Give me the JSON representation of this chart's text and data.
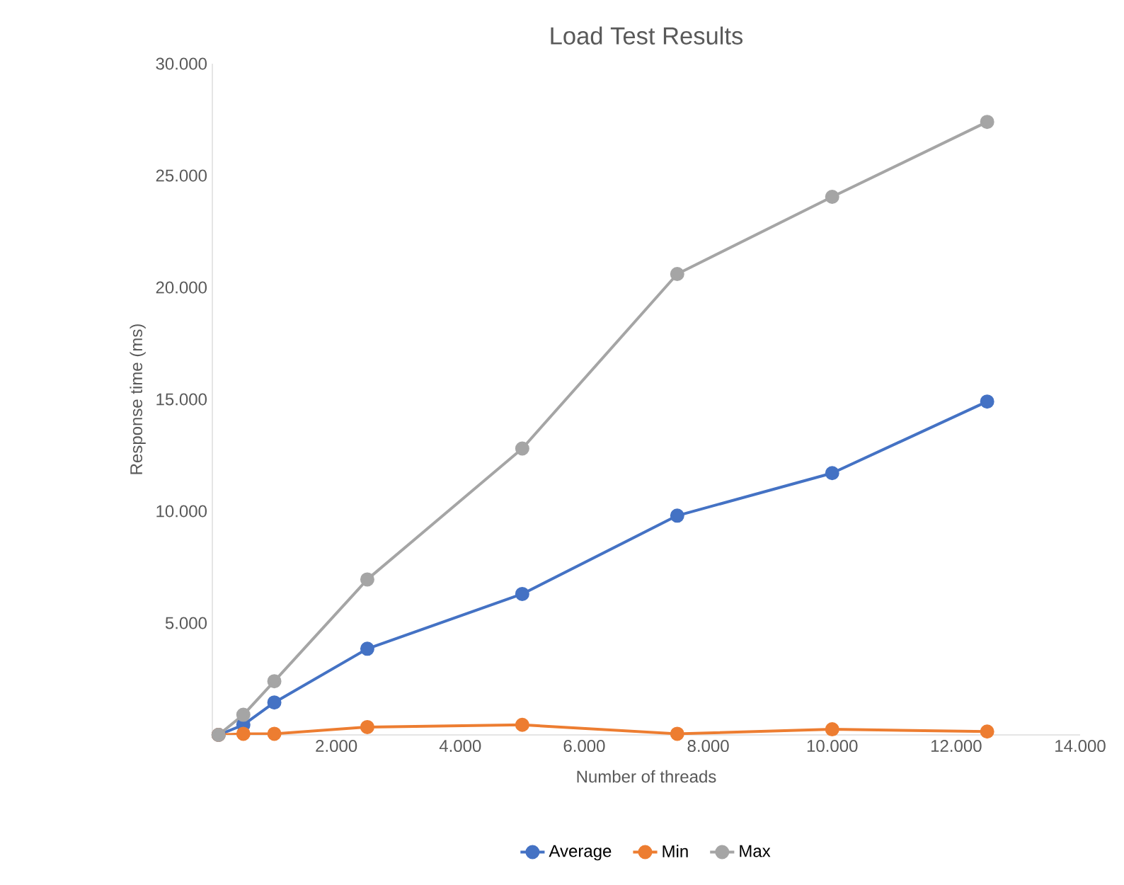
{
  "chart_data": {
    "type": "line",
    "title": "Load Test Results",
    "xlabel": "Number of threads",
    "ylabel": "Response time (ms)",
    "xlim": [
      0,
      14000
    ],
    "ylim": [
      0,
      30000
    ],
    "xticks": [
      {
        "value": 0,
        "label": null
      },
      {
        "value": 2000,
        "label": "2.000"
      },
      {
        "value": 4000,
        "label": "4.000"
      },
      {
        "value": 6000,
        "label": "6.000"
      },
      {
        "value": 8000,
        "label": "8.000"
      },
      {
        "value": 10000,
        "label": "10.000"
      },
      {
        "value": 12000,
        "label": "12.000"
      },
      {
        "value": 14000,
        "label": "14.000"
      }
    ],
    "yticks": [
      {
        "value": 0,
        "label": null
      },
      {
        "value": 5000,
        "label": "5.000"
      },
      {
        "value": 10000,
        "label": "10.000"
      },
      {
        "value": 15000,
        "label": "15.000"
      },
      {
        "value": 20000,
        "label": "20.000"
      },
      {
        "value": 25000,
        "label": "25.000"
      },
      {
        "value": 30000,
        "label": "30.000"
      }
    ],
    "x": [
      100,
      500,
      1000,
      2500,
      5000,
      7500,
      10000,
      12500
    ],
    "series": [
      {
        "name": "Average",
        "color": "#4472c4",
        "values": [
          0,
          450,
          1450,
          3850,
          6300,
          9800,
          11700,
          14900
        ]
      },
      {
        "name": "Min",
        "color": "#ed7d31",
        "values": [
          0,
          50,
          50,
          350,
          450,
          50,
          250,
          150
        ]
      },
      {
        "name": "Max",
        "color": "#a5a5a5",
        "values": [
          0,
          900,
          2400,
          6950,
          12800,
          20600,
          24050,
          27400
        ]
      }
    ],
    "marker": "circle",
    "line_style": "solid",
    "grid": false,
    "legend": "bottom"
  }
}
